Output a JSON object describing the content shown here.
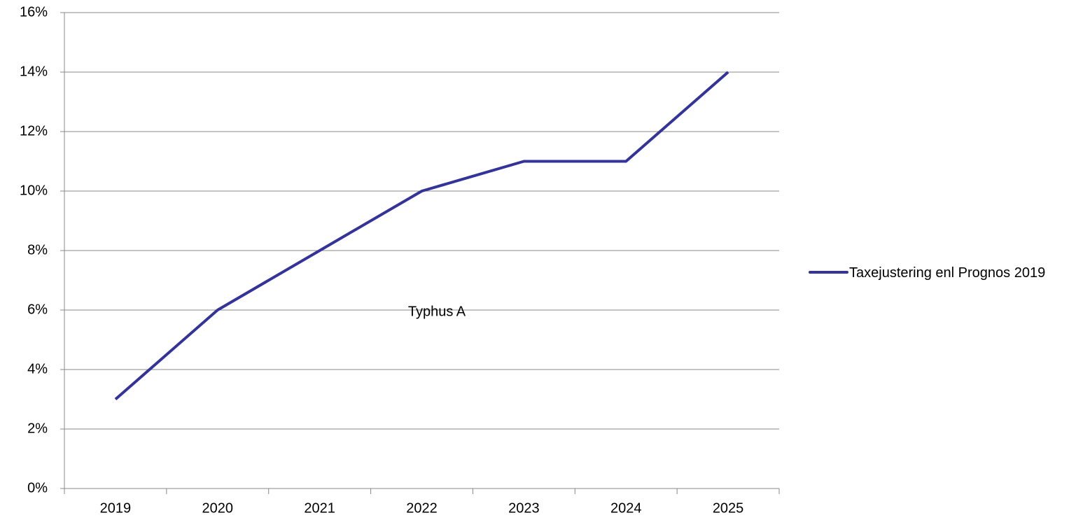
{
  "chart_data": {
    "type": "line",
    "categories": [
      "2019",
      "2020",
      "2021",
      "2022",
      "2023",
      "2024",
      "2025"
    ],
    "series": [
      {
        "name": "Taxejustering enl Prognos 2019",
        "color": "#333399",
        "values": [
          3,
          6,
          8,
          10,
          11,
          11,
          14
        ]
      }
    ],
    "ylim": [
      0,
      16
    ],
    "yticks": [
      {
        "value": 0,
        "label": "0%"
      },
      {
        "value": 2,
        "label": "2%"
      },
      {
        "value": 4,
        "label": "4%"
      },
      {
        "value": 6,
        "label": "6%"
      },
      {
        "value": 8,
        "label": "8%"
      },
      {
        "value": 10,
        "label": "10%"
      },
      {
        "value": 12,
        "label": "12%"
      },
      {
        "value": 14,
        "label": "14%"
      },
      {
        "value": 16,
        "label": "16%"
      }
    ],
    "grid": true,
    "legend": "right",
    "annotation": "Typhus A"
  }
}
